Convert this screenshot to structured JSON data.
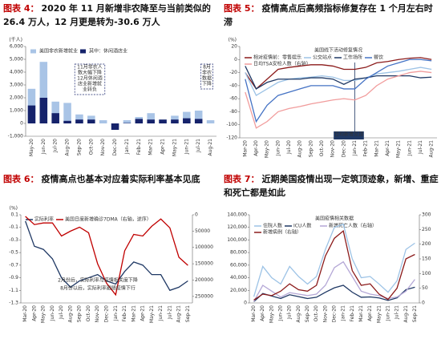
{
  "chart_data": [
    {
      "type": "bar",
      "figure_label": "图表 4：",
      "title": "2020 年 11 月新增非农降至与当前类似的 26.4 万人，12 月更是转为-30.6 万人",
      "unit": "(千人)",
      "categories": [
        "May-20",
        "Jun-20",
        "Jul-20",
        "Aug-20",
        "Sep-20",
        "Oct-20",
        "Nov-20",
        "Dec-20",
        "Jan-21",
        "Feb-21",
        "Mar-21",
        "Apr-21",
        "May-21",
        "Jun-21",
        "Jul-21",
        "Aug-21"
      ],
      "series": [
        {
          "name": "美国非农新增就业",
          "color": "#a9c4e6",
          "values": [
            2700,
            4800,
            1700,
            1600,
            700,
            600,
            250,
            -300,
            250,
            500,
            800,
            300,
            600,
            900,
            1000,
            250
          ]
        },
        {
          "name": "其中：休闲酒店业",
          "color": "#16236b",
          "values": [
            1400,
            2000,
            800,
            200,
            300,
            300,
            0,
            -500,
            30,
            350,
            300,
            300,
            300,
            400,
            350,
            0
          ]
        }
      ],
      "ylim": [
        -1000,
        6000
      ],
      "yticks": [
        {
          "value": 6000,
          "label": "6,000"
        },
        {
          "value": 5000,
          "label": "5,000"
        },
        {
          "value": 4000,
          "label": "4,000"
        },
        {
          "value": 3000,
          "label": "3,000"
        },
        {
          "value": 2000,
          "label": "2,000"
        },
        {
          "value": 1000,
          "label": "1,000"
        },
        0,
        {
          "value": -1000,
          "label": "-1,000"
        }
      ],
      "annotations": [
        {
          "lines": [
            "11月非农人",
            "数大幅下降",
            "12月休闲酒",
            "店业新增就",
            "业转负"
          ]
        },
        {
          "lines": [
            "8月",
            "非农",
            "数据",
            "下降"
          ]
        }
      ]
    },
    {
      "type": "line",
      "figure_label": "图表 5：",
      "title": "疫情高点后高频指标修复存在 1 个月左右时滞",
      "subtitle": "美国线下活动修复情况",
      "unit": "(%)",
      "categories": [
        "Mar-20",
        "Apr-20",
        "May-20",
        "Jun-20",
        "Jul-20",
        "Aug-20",
        "Sep-20",
        "Oct-20",
        "Nov-20",
        "Dec-20",
        "Jan-21",
        "Feb-21",
        "Mar-21",
        "Apr-21",
        "May-21",
        "Jun-21",
        "Jul-21",
        "Aug-21"
      ],
      "series": [
        {
          "name": "相对疫情前：零售娱乐",
          "color": "#8b1a1a",
          "values": [
            -20,
            -45,
            -30,
            -15,
            -12,
            -10,
            -8,
            -8,
            -10,
            -15,
            -15,
            -12,
            -5,
            -3,
            0,
            2,
            3,
            0
          ]
        },
        {
          "name": "公交站点",
          "color": "#9dc3e6",
          "values": [
            -20,
            -55,
            -45,
            -35,
            -30,
            -28,
            -27,
            -25,
            -27,
            -32,
            -32,
            -28,
            -22,
            -20,
            -18,
            -15,
            -12,
            -15
          ]
        },
        {
          "name": "工作场所",
          "color": "#1f3864",
          "values": [
            -10,
            -45,
            -35,
            -30,
            -30,
            -30,
            -28,
            -28,
            -30,
            -38,
            -30,
            -28,
            -25,
            -25,
            -25,
            -25,
            -28,
            -27
          ]
        },
        {
          "name": "餐饮",
          "color": "#4472c4",
          "values": [
            -30,
            -95,
            -70,
            -55,
            -50,
            -45,
            -40,
            -40,
            -40,
            -45,
            -45,
            -30,
            -20,
            -10,
            -5,
            0,
            0,
            -2
          ]
        },
        {
          "name": "日均TSA安检人数（右轴）",
          "color": "#f19c9c",
          "values": [
            -50,
            -105,
            -95,
            -80,
            -75,
            -72,
            -68,
            -65,
            -62,
            -60,
            -62,
            -55,
            -40,
            -30,
            -25,
            -20,
            -18,
            -20
          ]
        }
      ],
      "ylim": [
        -120,
        20
      ],
      "yticks": [
        20,
        0,
        -20,
        -40,
        -60,
        -80,
        -100,
        -120
      ],
      "annotations": [
        {
          "lines": [
            "日均新增见顶"
          ]
        }
      ]
    },
    {
      "type": "line",
      "figure_label": "图表 6：",
      "title": "疫情高点也基本对应着实际利率基本见底",
      "unit": "(%)",
      "categories": [
        "Mar-20",
        "Apr-20",
        "May-20",
        "Jun-20",
        "Jul-20",
        "Aug-20",
        "Sep-20",
        "Oct-20",
        "Nov-20",
        "Dec-20",
        "Jan-21",
        "Feb-21",
        "Mar-21",
        "Apr-21",
        "May-21",
        "Jun-21",
        "Jul-21",
        "Aug-21",
        "Sep-21"
      ],
      "series": [
        {
          "name": "实际利率",
          "color": "#1f3864",
          "values": [
            0.0,
            -0.4,
            -0.45,
            -0.6,
            -0.9,
            -1.05,
            -0.95,
            -0.9,
            -0.85,
            -0.95,
            -1.0,
            -0.8,
            -0.65,
            -0.7,
            -0.85,
            -0.85,
            -1.1,
            -1.05,
            -0.95
          ]
        },
        {
          "name": "美国日度新增确诊7DMA（右轴，逆序）",
          "color": "#c00000",
          "axis": "y2",
          "values": [
            5000,
            30000,
            25000,
            25000,
            65000,
            50000,
            38000,
            55000,
            150000,
            210000,
            245000,
            110000,
            60000,
            65000,
            35000,
            13000,
            40000,
            130000,
            155000
          ]
        }
      ],
      "ylim": [
        -1.3,
        0.1
      ],
      "yticks": [
        0.1,
        -0.1,
        -0.3,
        -0.5,
        -0.7,
        -0.9,
        -1.1,
        -1.3
      ],
      "y2lim": [
        270000,
        0
      ],
      "y2ticks": [
        0,
        50000,
        100000,
        150000,
        200000,
        250000
      ],
      "annotations": [
        {
          "lines": [
            "2月份后，实际利率与疫情相关度下降"
          ]
        },
        {
          "lines": [
            "8月份以后，实际利率跟随疫情下行"
          ]
        }
      ]
    },
    {
      "type": "line",
      "figure_label": "图表 7：",
      "title": "近期美国疫情出现一定筑顶迹象，新增、重症和死亡都是如此",
      "subtitle": "美国疫情相关数据",
      "categories": [
        "Mar-20",
        "Apr-20",
        "May-20",
        "Jun-20",
        "Jul-20",
        "Aug-20",
        "Sep-20",
        "Oct-20",
        "Nov-20",
        "Dec-20",
        "Jan-21",
        "Feb-21",
        "Mar-21",
        "Apr-21",
        "May-21",
        "Jun-21",
        "Jul-21",
        "Aug-21",
        "Sep-21"
      ],
      "series": [
        {
          "name": "住院人数",
          "color": "#9dc3e6",
          "values": [
            10000,
            58000,
            40000,
            30000,
            58000,
            42000,
            30000,
            42000,
            85000,
            120000,
            125000,
            70000,
            40000,
            42000,
            30000,
            17000,
            35000,
            85000,
            95000
          ]
        },
        {
          "name": "ICU人数",
          "color": "#1f3864",
          "values": [
            2000,
            15000,
            11000,
            7000,
            13000,
            10000,
            7000,
            9000,
            17000,
            24000,
            28000,
            17000,
            9000,
            9500,
            8000,
            4000,
            8000,
            21000,
            25000
          ]
        },
        {
          "name": "新增死亡人数（右轴）",
          "color": "#b4a7d6",
          "axis": "y2",
          "values": [
            5,
            60,
            40,
            20,
            35,
            30,
            25,
            30,
            60,
            120,
            140,
            90,
            40,
            30,
            25,
            15,
            20,
            40,
            80
          ]
        },
        {
          "name": "新增病例（右轴）",
          "color": "#8b1a1a",
          "axis": "y2",
          "values": [
            10,
            30,
            25,
            40,
            65,
            45,
            40,
            60,
            160,
            220,
            245,
            110,
            60,
            65,
            30,
            12,
            50,
            150,
            165
          ]
        }
      ],
      "ylim": [
        0,
        140000
      ],
      "yticks": [
        0,
        {
          "value": 20000,
          "label": "20,000"
        },
        {
          "value": 40000,
          "label": "40,000"
        },
        {
          "value": 60000,
          "label": "60,000"
        },
        {
          "value": 80000,
          "label": "80,000"
        },
        {
          "value": 100000,
          "label": "100,000"
        },
        {
          "value": 120000,
          "label": "120,000"
        },
        {
          "value": 140000,
          "label": "140,000"
        }
      ],
      "y2lim": [
        0,
        300
      ],
      "y2ticks": [
        0,
        50,
        100,
        150,
        200,
        250,
        300
      ]
    }
  ]
}
